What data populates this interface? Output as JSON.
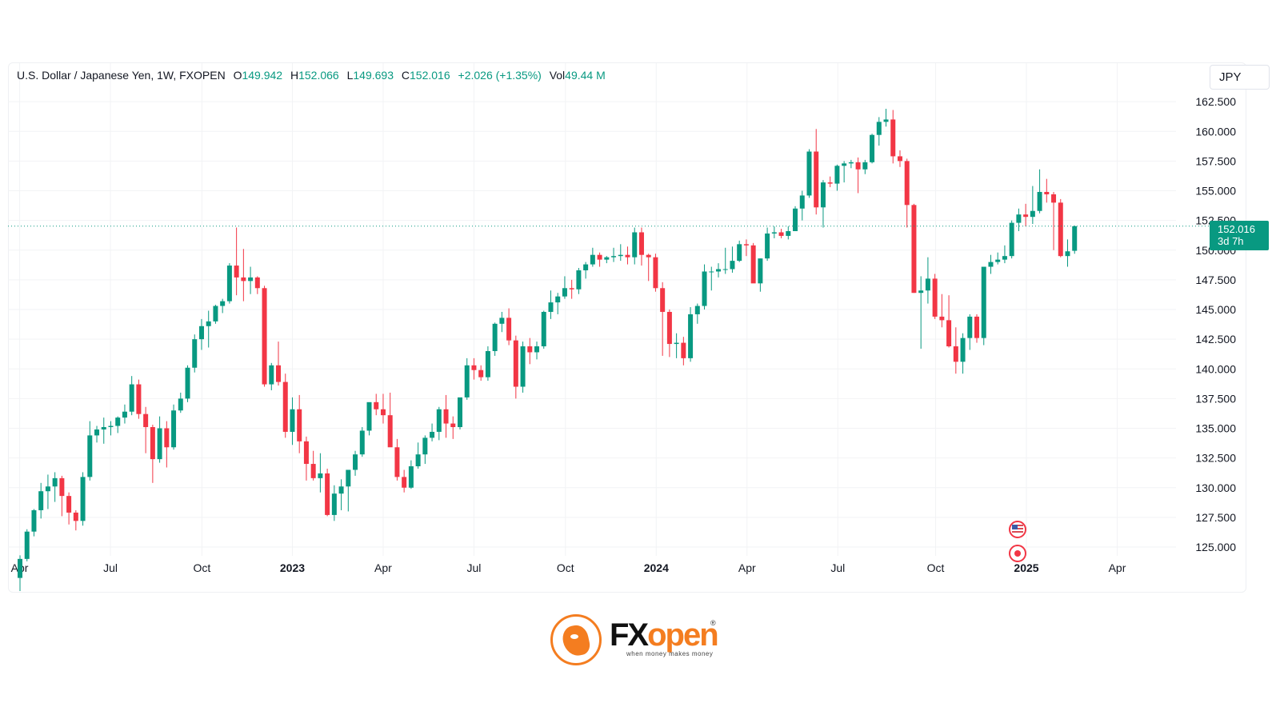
{
  "header": {
    "symbol": "U.S. Dollar / Japanese Yen, 1W, FXOPEN",
    "o_label": "O",
    "o_value": "149.942",
    "h_label": "H",
    "h_value": "152.066",
    "l_label": "L",
    "l_value": "149.693",
    "c_label": "C",
    "c_value": "152.016",
    "change": "+2.026 (+1.35%)",
    "vol_label": "Vol",
    "vol_value": "49.44 M"
  },
  "currency_button": "JPY",
  "last_price": {
    "price": "152.016",
    "countdown": "3d 7h",
    "value": 152.016
  },
  "branding": {
    "name_fx": "FX",
    "name_open": "open",
    "registered": "®",
    "tagline": "when money makes money"
  },
  "colors": {
    "up": "#089981",
    "down": "#f23645",
    "grid": "#f2f3f5",
    "text": "#131722",
    "brand": "#f47d20"
  },
  "icons": [
    "us-flag-event-icon",
    "dividend-event-icon"
  ],
  "chart_data": {
    "type": "candlestick",
    "title": "",
    "ylim": [
      124.2,
      163.8
    ],
    "y_ticks": [
      "125.000",
      "127.500",
      "130.000",
      "132.500",
      "135.000",
      "137.500",
      "140.000",
      "142.500",
      "145.000",
      "147.500",
      "150.000",
      "152.500",
      "155.000",
      "157.500",
      "160.000",
      "162.500"
    ],
    "x_ticks": [
      {
        "label": "Apr",
        "index": -0.05,
        "bold": false
      },
      {
        "label": "Jul",
        "index": 12.95,
        "bold": false
      },
      {
        "label": "Oct",
        "index": 26.05,
        "bold": false
      },
      {
        "label": "2023",
        "index": 39.0,
        "bold": true
      },
      {
        "label": "Apr",
        "index": 52.0,
        "bold": false
      },
      {
        "label": "Jul",
        "index": 65.0,
        "bold": false
      },
      {
        "label": "Oct",
        "index": 78.1,
        "bold": false
      },
      {
        "label": "2024",
        "index": 91.1,
        "bold": true
      },
      {
        "label": "Apr",
        "index": 104.1,
        "bold": false
      },
      {
        "label": "Jul",
        "index": 117.1,
        "bold": false
      },
      {
        "label": "Oct",
        "index": 131.1,
        "bold": false
      },
      {
        "label": "2025",
        "index": 144.1,
        "bold": true
      },
      {
        "label": "Apr",
        "index": 157.1,
        "bold": false
      }
    ],
    "candles": [
      [
        122.4,
        124.3,
        121.3,
        124.0
      ],
      [
        124.0,
        126.5,
        123.8,
        126.3
      ],
      [
        126.3,
        128.2,
        125.9,
        128.1
      ],
      [
        128.1,
        130.4,
        127.4,
        129.7
      ],
      [
        129.7,
        131.1,
        128.2,
        130.1
      ],
      [
        130.1,
        131.3,
        128.8,
        130.8
      ],
      [
        130.8,
        131.0,
        127.6,
        129.3
      ],
      [
        129.3,
        129.6,
        126.9,
        127.9
      ],
      [
        127.9,
        128.1,
        126.4,
        127.2
      ],
      [
        127.2,
        131.3,
        126.8,
        130.9
      ],
      [
        130.9,
        135.6,
        130.6,
        134.4
      ],
      [
        134.4,
        135.2,
        133.8,
        134.9
      ],
      [
        134.9,
        135.9,
        133.7,
        135.1
      ],
      [
        135.1,
        135.6,
        134.4,
        135.2
      ],
      [
        135.2,
        136.0,
        134.6,
        135.9
      ],
      [
        135.9,
        137.0,
        135.4,
        136.4
      ],
      [
        136.4,
        139.4,
        136.1,
        138.7
      ],
      [
        138.7,
        139.1,
        135.8,
        136.2
      ],
      [
        136.2,
        136.8,
        132.9,
        135.1
      ],
      [
        135.1,
        135.3,
        130.4,
        132.4
      ],
      [
        132.4,
        136.0,
        132.1,
        135.0
      ],
      [
        135.0,
        135.6,
        131.7,
        133.4
      ],
      [
        133.4,
        137.0,
        133.2,
        136.5
      ],
      [
        136.5,
        138.0,
        136.3,
        137.5
      ],
      [
        137.5,
        140.3,
        137.2,
        140.1
      ],
      [
        140.1,
        142.9,
        139.7,
        142.5
      ],
      [
        142.5,
        144.2,
        141.6,
        143.6
      ],
      [
        143.6,
        144.9,
        141.8,
        144.0
      ],
      [
        144.0,
        145.4,
        143.8,
        145.3
      ],
      [
        145.3,
        145.9,
        144.7,
        145.7
      ],
      [
        145.7,
        148.9,
        145.5,
        148.7
      ],
      [
        148.7,
        151.9,
        146.2,
        147.7
      ],
      [
        147.7,
        150.1,
        145.7,
        147.4
      ],
      [
        147.4,
        148.6,
        146.3,
        147.7
      ],
      [
        147.7,
        147.8,
        146.3,
        146.8
      ],
      [
        146.8,
        147.0,
        138.5,
        138.7
      ],
      [
        138.7,
        140.5,
        138.2,
        140.3
      ],
      [
        140.3,
        142.3,
        138.6,
        138.9
      ],
      [
        138.9,
        139.6,
        134.2,
        134.7
      ],
      [
        134.7,
        137.6,
        133.6,
        136.6
      ],
      [
        136.6,
        137.8,
        132.9,
        133.9
      ],
      [
        133.9,
        134.3,
        130.6,
        132.0
      ],
      [
        132.0,
        133.1,
        130.6,
        130.8
      ],
      [
        130.8,
        132.9,
        129.6,
        131.2
      ],
      [
        131.2,
        131.6,
        127.6,
        127.7
      ],
      [
        127.7,
        130.2,
        127.2,
        129.5
      ],
      [
        129.5,
        130.7,
        128.1,
        130.1
      ],
      [
        130.1,
        131.5,
        128.0,
        131.5
      ],
      [
        131.5,
        133.1,
        131.0,
        132.8
      ],
      [
        132.8,
        135.1,
        132.6,
        134.8
      ],
      [
        134.8,
        137.1,
        134.4,
        137.2
      ],
      [
        137.2,
        137.9,
        136.1,
        136.6
      ],
      [
        136.6,
        137.9,
        135.4,
        136.1
      ],
      [
        136.1,
        138.0,
        133.6,
        133.4
      ],
      [
        133.4,
        134.1,
        130.6,
        130.9
      ],
      [
        130.9,
        131.5,
        129.6,
        130.0
      ],
      [
        130.0,
        132.3,
        129.9,
        131.8
      ],
      [
        131.8,
        133.8,
        131.6,
        132.8
      ],
      [
        132.8,
        134.4,
        132.0,
        134.2
      ],
      [
        134.2,
        135.4,
        133.9,
        134.7
      ],
      [
        134.7,
        136.8,
        134.0,
        136.6
      ],
      [
        136.6,
        137.8,
        134.2,
        135.4
      ],
      [
        135.4,
        136.0,
        134.1,
        135.1
      ],
      [
        135.1,
        137.4,
        134.9,
        137.6
      ],
      [
        137.6,
        140.9,
        137.4,
        140.3
      ],
      [
        140.3,
        140.9,
        139.1,
        139.9
      ],
      [
        139.9,
        140.3,
        139.0,
        139.3
      ],
      [
        139.3,
        141.9,
        139.0,
        141.5
      ],
      [
        141.5,
        143.9,
        141.1,
        143.8
      ],
      [
        143.8,
        144.8,
        143.1,
        144.3
      ],
      [
        144.3,
        145.1,
        142.0,
        142.4
      ],
      [
        142.4,
        142.8,
        137.5,
        138.5
      ],
      [
        138.5,
        142.3,
        138.0,
        141.9
      ],
      [
        141.9,
        142.6,
        140.4,
        141.4
      ],
      [
        141.4,
        142.3,
        140.8,
        141.9
      ],
      [
        141.9,
        144.9,
        141.7,
        144.8
      ],
      [
        144.8,
        146.6,
        144.2,
        145.6
      ],
      [
        145.6,
        146.4,
        144.6,
        146.1
      ],
      [
        146.1,
        147.8,
        145.9,
        146.8
      ],
      [
        146.8,
        147.5,
        145.9,
        146.7
      ],
      [
        146.7,
        148.5,
        146.3,
        148.3
      ],
      [
        148.3,
        149.0,
        147.6,
        148.8
      ],
      [
        148.8,
        150.2,
        148.6,
        149.6
      ],
      [
        149.6,
        149.8,
        148.6,
        149.2
      ],
      [
        149.2,
        149.5,
        148.9,
        149.4
      ],
      [
        149.4,
        150.2,
        149.0,
        149.5
      ],
      [
        149.5,
        150.5,
        149.1,
        149.6
      ],
      [
        149.6,
        150.3,
        148.8,
        149.4
      ],
      [
        149.4,
        151.9,
        148.8,
        151.5
      ],
      [
        151.5,
        151.9,
        148.7,
        149.6
      ],
      [
        149.6,
        149.7,
        147.4,
        149.4
      ],
      [
        149.4,
        149.7,
        146.5,
        146.8
      ],
      [
        146.8,
        147.3,
        141.1,
        144.8
      ],
      [
        144.8,
        145.0,
        141.0,
        142.1
      ],
      [
        142.1,
        143.0,
        140.9,
        142.2
      ],
      [
        142.2,
        142.7,
        140.3,
        140.9
      ],
      [
        140.9,
        145.2,
        140.6,
        144.6
      ],
      [
        144.6,
        145.5,
        143.8,
        145.3
      ],
      [
        145.3,
        148.8,
        145.0,
        148.2
      ],
      [
        148.2,
        148.6,
        146.6,
        148.2
      ],
      [
        148.2,
        148.9,
        147.7,
        148.4
      ],
      [
        148.4,
        150.2,
        148.0,
        148.4
      ],
      [
        148.4,
        150.3,
        148.1,
        149.1
      ],
      [
        149.1,
        150.8,
        149.0,
        150.5
      ],
      [
        150.5,
        150.9,
        149.5,
        150.4
      ],
      [
        150.4,
        150.6,
        147.3,
        147.2
      ],
      [
        147.2,
        149.3,
        146.5,
        149.3
      ],
      [
        149.3,
        151.9,
        149.1,
        151.4
      ],
      [
        151.4,
        152.0,
        151.0,
        151.5
      ],
      [
        151.5,
        151.8,
        151.0,
        151.2
      ],
      [
        151.2,
        152.0,
        150.9,
        151.6
      ],
      [
        151.6,
        153.7,
        151.6,
        153.5
      ],
      [
        153.5,
        155.0,
        152.5,
        154.6
      ],
      [
        154.6,
        158.5,
        154.4,
        158.3
      ],
      [
        158.3,
        160.2,
        153.0,
        153.6
      ],
      [
        153.6,
        155.9,
        151.9,
        155.7
      ],
      [
        155.7,
        156.2,
        155.3,
        155.6
      ],
      [
        155.6,
        157.2,
        155.0,
        157.1
      ],
      [
        157.1,
        157.5,
        155.7,
        157.3
      ],
      [
        157.3,
        157.6,
        156.9,
        157.4
      ],
      [
        157.4,
        157.8,
        154.8,
        156.8
      ],
      [
        156.8,
        157.6,
        156.4,
        157.4
      ],
      [
        157.4,
        159.8,
        157.3,
        159.7
      ],
      [
        159.7,
        161.2,
        158.8,
        160.8
      ],
      [
        160.8,
        161.9,
        160.4,
        161.0
      ],
      [
        161.0,
        161.8,
        157.3,
        157.9
      ],
      [
        157.9,
        158.4,
        157.0,
        157.5
      ],
      [
        157.5,
        157.7,
        151.9,
        153.8
      ],
      [
        153.8,
        153.9,
        146.4,
        146.4
      ],
      [
        146.4,
        147.8,
        141.7,
        146.6
      ],
      [
        146.6,
        149.4,
        145.5,
        147.6
      ],
      [
        147.6,
        148.0,
        144.2,
        144.4
      ],
      [
        144.4,
        146.3,
        143.5,
        144.1
      ],
      [
        144.1,
        146.2,
        141.8,
        141.9
      ],
      [
        141.9,
        143.5,
        139.6,
        140.6
      ],
      [
        140.6,
        143.0,
        139.6,
        142.6
      ],
      [
        142.6,
        144.6,
        141.6,
        144.4
      ],
      [
        144.4,
        144.6,
        142.2,
        142.6
      ],
      [
        142.6,
        148.5,
        142.0,
        148.6
      ],
      [
        148.6,
        149.6,
        148.0,
        149.0
      ],
      [
        149.0,
        149.8,
        148.8,
        149.2
      ],
      [
        149.2,
        150.4,
        148.9,
        149.5
      ],
      [
        149.5,
        152.5,
        149.3,
        152.3
      ],
      [
        152.3,
        153.5,
        151.6,
        153.0
      ],
      [
        153.0,
        153.9,
        152.0,
        152.8
      ],
      [
        152.8,
        155.4,
        152.2,
        153.3
      ],
      [
        153.3,
        156.8,
        153.1,
        154.9
      ],
      [
        154.9,
        156.0,
        154.0,
        154.7
      ],
      [
        154.7,
        154.9,
        150.0,
        154.0
      ],
      [
        154.0,
        154.3,
        149.4,
        149.5
      ],
      [
        149.5,
        150.9,
        148.6,
        149.9
      ],
      [
        149.942,
        152.066,
        149.693,
        152.016
      ]
    ]
  }
}
